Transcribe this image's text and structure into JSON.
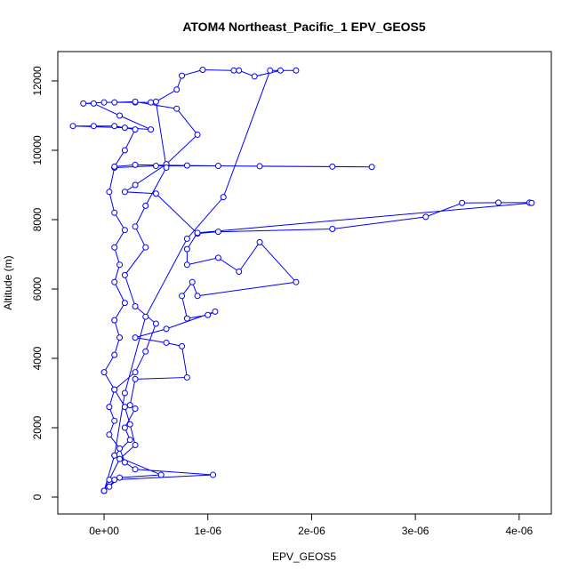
{
  "chart_data": {
    "type": "line",
    "title": "ATOM4 Northeast_Pacific_1 EPV_GEOS5",
    "x_label": "EPV_GEOS5",
    "y_label": "Altitude (m)",
    "color": "#0000ff",
    "marker": "open-circle",
    "xlim": [
      -4.46e-07,
      4.31e-06
    ],
    "ylim": [
      -487,
      12846
    ],
    "xticks": [
      {
        "value": 0,
        "label": "0e+00"
      },
      {
        "value": 1e-06,
        "label": "1e-06"
      },
      {
        "value": 2e-06,
        "label": "2e-06"
      },
      {
        "value": 3e-06,
        "label": "3e-06"
      },
      {
        "value": 4e-06,
        "label": "4e-06"
      }
    ],
    "yticks": [
      0,
      2000,
      4000,
      6000,
      8000,
      10000,
      12000
    ],
    "x": [
      0,
      5e-08,
      1e-07,
      1.05e-06,
      3e-07,
      2e-07,
      1.5e-07,
      5e-08,
      1e-07,
      5e-08,
      1e-07,
      0,
      1e-07,
      1.5e-07,
      1e-07,
      2e-07,
      1e-07,
      1.5e-07,
      1e-07,
      2e-07,
      1e-07,
      5e-08,
      1e-07,
      5e-07,
      1.1e-06,
      2.2e-06,
      2.58e-06,
      1.5e-06,
      8e-07,
      3e-07,
      1e-07,
      2e-07,
      3e-07,
      1e-07,
      -1e-07,
      -3e-07,
      2e-07,
      4.5e-07,
      1.5e-07,
      -1e-07,
      -2e-07,
      0,
      3e-07,
      4.5e-07,
      1e-07,
      3e-07,
      7e-07,
      9e-07,
      6e-07,
      3e-07,
      2e-07,
      5e-07,
      9e-07,
      1.1e-06,
      2.2e-06,
      3.1e-06,
      3.45e-06,
      3.8e-06,
      4.1e-06,
      4.12e-06,
      9e-07,
      8e-07,
      8e-07,
      1.1e-06,
      1.3e-06,
      1.5e-06,
      1.85e-06,
      9e-07,
      8.5e-07,
      7.5e-07,
      8e-07,
      1e-06,
      1.07e-06,
      6e-07,
      3e-07,
      6e-07,
      7.5e-07,
      8e-07,
      3e-07,
      2.5e-07,
      3e-07,
      2e-07,
      2.5e-07,
      1e-07,
      5.5e-07,
      1.5e-07,
      0,
      5e-08,
      1.5e-07,
      3e-07,
      2.5e-07,
      2e-07,
      1e-07,
      3e-07,
      4e-07,
      5e-07,
      3e-07,
      2e-07,
      4e-07,
      3e-07,
      4e-07,
      6e-07,
      5e-07,
      7e-07,
      7.5e-07,
      9.5e-07,
      1.25e-06,
      1.3e-06,
      1.45e-06,
      1.7e-06,
      1.85e-06,
      1.6e-06,
      1.15e-06,
      8e-07,
      4e-07,
      2e-07,
      1e-07,
      0
    ],
    "values": [
      180,
      300,
      500,
      640,
      800,
      1000,
      1400,
      1800,
      2200,
      2600,
      3100,
      3600,
      4100,
      4600,
      5100,
      5600,
      6200,
      6700,
      7200,
      7700,
      8200,
      8800,
      9500,
      9550,
      9550,
      9530,
      9520,
      9540,
      9560,
      9580,
      9530,
      10000,
      10600,
      10700,
      10700,
      10700,
      10650,
      10600,
      11000,
      11350,
      11350,
      11380,
      11380,
      11380,
      11380,
      11400,
      11200,
      10450,
      9600,
      9000,
      8800,
      8750,
      7600,
      7650,
      7730,
      8080,
      8480,
      8490,
      8490,
      8480,
      7620,
      7150,
      6700,
      6900,
      6500,
      7350,
      6200,
      5800,
      6200,
      5800,
      5150,
      5250,
      5350,
      4850,
      4600,
      4450,
      4350,
      3450,
      3400,
      2650,
      2550,
      2000,
      1650,
      1200,
      640,
      560,
      180,
      500,
      1100,
      1500,
      2100,
      2600,
      3100,
      3600,
      4200,
      5000,
      5500,
      6400,
      7200,
      7800,
      8400,
      9500,
      11400,
      11750,
      12150,
      12320,
      12300,
      12300,
      12130,
      12300,
      12300,
      12300,
      8650,
      7450,
      5200,
      3000,
      1200,
      180
    ]
  }
}
